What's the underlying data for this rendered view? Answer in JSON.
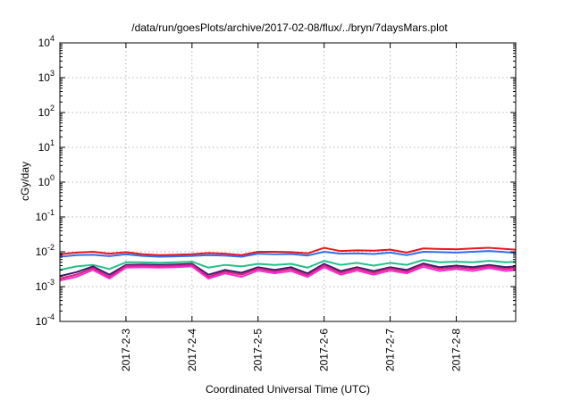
{
  "chart_data": {
    "type": "line",
    "title": "/data/run/goesPlots/archive/2017-02-08/flux/../bryn/7daysMars.plot",
    "xlabel": "Coordinated Universal Time (UTC)",
    "ylabel": "cGy/day",
    "y_scale": "log",
    "ylim": [
      0.0001,
      10000
    ],
    "xlim": [
      "2017-02-02 00:00",
      "2017-02-08 21:36"
    ],
    "grid": true,
    "x_ticks": [
      {
        "x": "2017-02-03 00:00",
        "label": "2017-2-3"
      },
      {
        "x": "2017-02-04 00:00",
        "label": "2017-2-4"
      },
      {
        "x": "2017-02-05 00:00",
        "label": "2017-2-5"
      },
      {
        "x": "2017-02-06 00:00",
        "label": "2017-2-6"
      },
      {
        "x": "2017-02-07 00:00",
        "label": "2017-2-7"
      },
      {
        "x": "2017-02-08 00:00",
        "label": "2017-2-8"
      }
    ],
    "y_ticks": [
      {
        "value": 0.0001,
        "base": "10",
        "exp": "-4"
      },
      {
        "value": 0.001,
        "base": "10",
        "exp": "-3"
      },
      {
        "value": 0.01,
        "base": "10",
        "exp": "-2"
      },
      {
        "value": 0.1,
        "base": "10",
        "exp": "-1"
      },
      {
        "value": 1,
        "base": "10",
        "exp": "0"
      },
      {
        "value": 10,
        "base": "10",
        "exp": "1"
      },
      {
        "value": 100,
        "base": "10",
        "exp": "2"
      },
      {
        "value": 1000,
        "base": "10",
        "exp": "3"
      },
      {
        "value": 10000,
        "base": "10",
        "exp": "4"
      }
    ],
    "x": [
      "2017-02-02 00:00",
      "2017-02-02 06:00",
      "2017-02-02 12:00",
      "2017-02-02 18:00",
      "2017-02-03 00:00",
      "2017-02-03 06:00",
      "2017-02-03 12:00",
      "2017-02-03 18:00",
      "2017-02-04 00:00",
      "2017-02-04 06:00",
      "2017-02-04 12:00",
      "2017-02-04 18:00",
      "2017-02-05 00:00",
      "2017-02-05 06:00",
      "2017-02-05 12:00",
      "2017-02-05 18:00",
      "2017-02-06 00:00",
      "2017-02-06 06:00",
      "2017-02-06 12:00",
      "2017-02-06 18:00",
      "2017-02-07 00:00",
      "2017-02-07 06:00",
      "2017-02-07 12:00",
      "2017-02-07 18:00",
      "2017-02-08 00:00",
      "2017-02-08 06:00",
      "2017-02-08 12:00",
      "2017-02-08 18:00",
      "2017-02-08 21:36"
    ],
    "series": [
      {
        "color": "#e8141e",
        "values": [
          0.0085,
          0.0095,
          0.01,
          0.0088,
          0.0098,
          0.0085,
          0.008,
          0.0082,
          0.0085,
          0.0092,
          0.0088,
          0.008,
          0.01,
          0.01,
          0.0098,
          0.009,
          0.013,
          0.0105,
          0.011,
          0.0108,
          0.0115,
          0.0095,
          0.0125,
          0.012,
          0.0118,
          0.0125,
          0.013,
          0.012,
          0.0115
        ]
      },
      {
        "color": "#2d6ff0",
        "values": [
          0.0072,
          0.008,
          0.0082,
          0.0075,
          0.0085,
          0.0076,
          0.0072,
          0.0074,
          0.0076,
          0.008,
          0.0078,
          0.0072,
          0.0088,
          0.0085,
          0.0086,
          0.0078,
          0.01,
          0.0088,
          0.009,
          0.0086,
          0.0095,
          0.008,
          0.01,
          0.0098,
          0.0095,
          0.01,
          0.0105,
          0.0098,
          0.0092
        ]
      },
      {
        "color": "#22c088",
        "values": [
          0.003,
          0.0038,
          0.0042,
          0.0032,
          0.005,
          0.005,
          0.0048,
          0.005,
          0.0052,
          0.0035,
          0.0042,
          0.0038,
          0.0045,
          0.0042,
          0.0045,
          0.0035,
          0.0055,
          0.0042,
          0.0048,
          0.004,
          0.0048,
          0.0042,
          0.0058,
          0.005,
          0.0052,
          0.005,
          0.0055,
          0.005,
          0.0052
        ]
      },
      {
        "color": "#3a1a6e",
        "values": [
          0.002,
          0.0026,
          0.0038,
          0.0022,
          0.0042,
          0.0043,
          0.0042,
          0.0043,
          0.0045,
          0.0022,
          0.003,
          0.0025,
          0.0036,
          0.003,
          0.0036,
          0.0024,
          0.0045,
          0.0028,
          0.0036,
          0.0028,
          0.0036,
          0.003,
          0.0046,
          0.0036,
          0.004,
          0.0036,
          0.0042,
          0.0036,
          0.0038
        ]
      },
      {
        "color": "#d8207a",
        "values": [
          0.0017,
          0.0022,
          0.0034,
          0.0019,
          0.0039,
          0.004,
          0.0039,
          0.004,
          0.0042,
          0.0019,
          0.0027,
          0.0022,
          0.0033,
          0.0027,
          0.0032,
          0.0021,
          0.0041,
          0.0025,
          0.0033,
          0.0025,
          0.0033,
          0.0027,
          0.0042,
          0.0032,
          0.0036,
          0.0032,
          0.0038,
          0.0032,
          0.0034
        ]
      },
      {
        "color": "#f52cd2",
        "values": [
          0.0015,
          0.0019,
          0.003,
          0.0017,
          0.0035,
          0.0036,
          0.0035,
          0.0036,
          0.0038,
          0.0017,
          0.0024,
          0.0019,
          0.0029,
          0.0024,
          0.0028,
          0.0019,
          0.0036,
          0.0022,
          0.0029,
          0.0022,
          0.0029,
          0.0024,
          0.0037,
          0.0028,
          0.0032,
          0.0028,
          0.0034,
          0.0028,
          0.003
        ]
      }
    ]
  }
}
